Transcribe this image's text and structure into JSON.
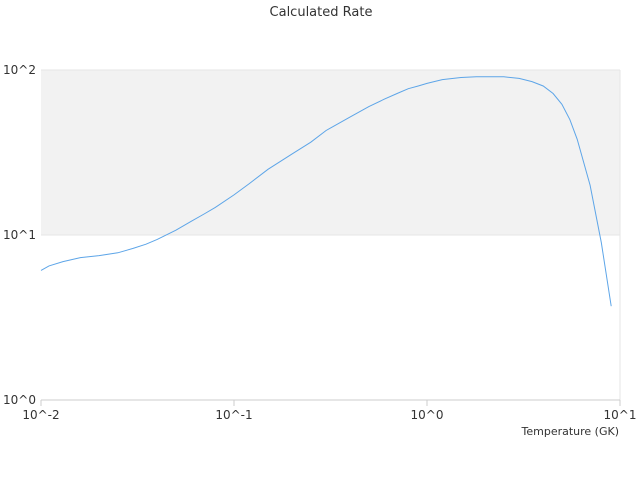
{
  "chart_data": {
    "type": "line",
    "title": "Calculated Rate",
    "xlabel": "Temperature (GK)",
    "ylabel": "",
    "x_scale": "log",
    "y_scale": "log",
    "xlim": [
      0.01,
      10
    ],
    "ylim": [
      1,
      100
    ],
    "x_ticks": [
      {
        "value": 0.01,
        "label": "10^-2"
      },
      {
        "value": 0.1,
        "label": "10^-1"
      },
      {
        "value": 1,
        "label": "10^0"
      },
      {
        "value": 10,
        "label": "10^1"
      }
    ],
    "y_ticks": [
      {
        "value": 1,
        "label": "10^0"
      },
      {
        "value": 10,
        "label": "10^1"
      },
      {
        "value": 100,
        "label": "10^2"
      }
    ],
    "band": {
      "from": 10,
      "to": 100,
      "color": "#f2f2f2"
    },
    "line_color": "#5da5e8",
    "grid": true,
    "legend": "none",
    "series": [
      {
        "x": [
          0.01,
          0.011,
          0.013,
          0.016,
          0.02,
          0.025,
          0.03,
          0.035,
          0.04,
          0.05,
          0.06,
          0.07,
          0.08,
          0.1,
          0.12,
          0.15,
          0.2,
          0.25,
          0.3,
          0.4,
          0.5,
          0.6,
          0.7,
          0.8,
          0.9,
          1.0,
          1.2,
          1.5,
          1.8,
          2.0,
          2.5,
          3.0,
          3.5,
          4.0,
          4.5,
          5.0,
          5.5,
          6.0,
          7.0,
          8.0,
          9.0
        ],
        "y": [
          6.1,
          6.5,
          6.9,
          7.3,
          7.5,
          7.8,
          8.3,
          8.8,
          9.4,
          10.7,
          12.1,
          13.4,
          14.7,
          17.5,
          20.5,
          25,
          31,
          36.5,
          43,
          52,
          60,
          66.5,
          72,
          77,
          80,
          83,
          87.5,
          90,
          91,
          91,
          91,
          89,
          85,
          80,
          72,
          62,
          50,
          38,
          20,
          9,
          3.7
        ]
      }
    ]
  }
}
